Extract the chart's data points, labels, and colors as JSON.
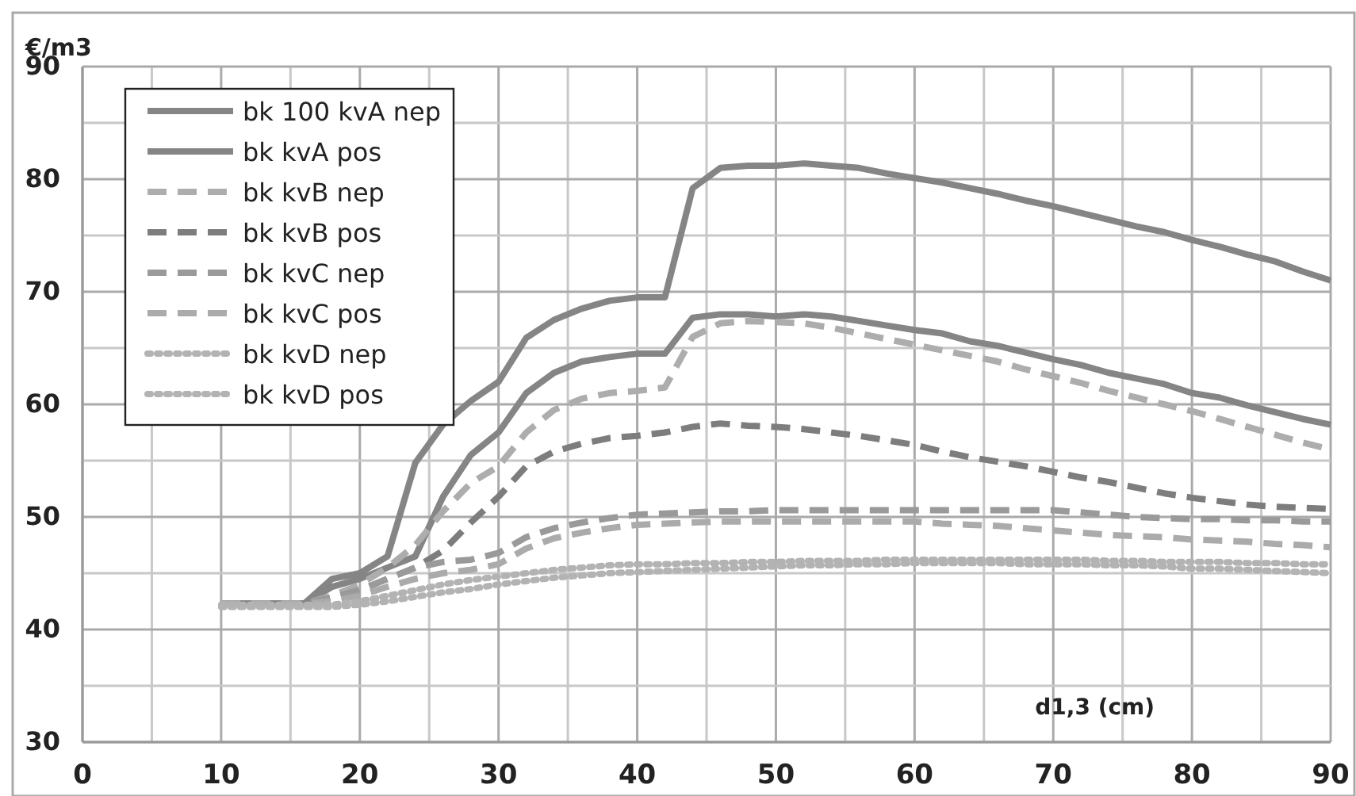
{
  "chart_data": {
    "type": "line",
    "ylabel": "€/m3",
    "xlabel": "d1,3 (cm)",
    "x": [
      10,
      12,
      14,
      16,
      18,
      20,
      22,
      24,
      26,
      28,
      30,
      32,
      34,
      36,
      38,
      40,
      42,
      44,
      46,
      48,
      50,
      52,
      54,
      56,
      58,
      60,
      62,
      64,
      66,
      68,
      70,
      72,
      74,
      76,
      78,
      80,
      82,
      84,
      86,
      88,
      90
    ],
    "series": [
      {
        "name": "bk 100 kvA nep",
        "color": "#858585",
        "line_style": "solid",
        "values": [
          42.3,
          42.3,
          42.3,
          42.3,
          44.5,
          45,
          46.5,
          54.8,
          58.2,
          60.3,
          62,
          65.9,
          67.5,
          68.5,
          69.2,
          69.5,
          69.5,
          79.2,
          81,
          81.2,
          81.2,
          81.4,
          81.2,
          81,
          80.5,
          80.1,
          79.7,
          79.2,
          78.7,
          78.1,
          77.6,
          77,
          76.4,
          75.8,
          75.3,
          74.6,
          74,
          73.3,
          72.7,
          71.8,
          71
        ]
      },
      {
        "name": "bk kvA pos",
        "color": "#858585",
        "line_style": "solid",
        "values": [
          42.3,
          42.3,
          42.3,
          42.3,
          43.8,
          44.5,
          45.5,
          46.5,
          51.8,
          55.5,
          57.5,
          61,
          62.8,
          63.8,
          64.2,
          64.5,
          64.5,
          67.7,
          68,
          68,
          67.8,
          68,
          67.8,
          67.4,
          67,
          66.6,
          66.3,
          65.6,
          65.2,
          64.6,
          64,
          63.5,
          62.8,
          62.3,
          61.8,
          61,
          60.6,
          59.9,
          59.3,
          58.7,
          58.2
        ]
      },
      {
        "name": "bk kvB nep",
        "color": "#adadad",
        "line_style": "dashed",
        "values": [
          42.3,
          42.3,
          42.3,
          42.3,
          43,
          44,
          45.5,
          47.5,
          50.5,
          53,
          54.5,
          57.5,
          59.5,
          60.5,
          61,
          61.2,
          61.5,
          66,
          67.2,
          67.4,
          67.3,
          67.2,
          66.8,
          66.3,
          65.8,
          65.3,
          64.8,
          64.3,
          63.8,
          63.1,
          62.5,
          61.9,
          61.2,
          60.6,
          60,
          59.4,
          58.7,
          58,
          57.3,
          56.6,
          56
        ]
      },
      {
        "name": "bk kvB pos",
        "color": "#7d7d7d",
        "line_style": "dashed",
        "values": [
          42.3,
          42.3,
          42.3,
          42.3,
          42.8,
          43.5,
          44.5,
          45.5,
          47,
          49.5,
          51.8,
          54.5,
          55.8,
          56.5,
          57,
          57.2,
          57.5,
          58,
          58.3,
          58.1,
          58,
          57.8,
          57.5,
          57.2,
          56.8,
          56.4,
          55.8,
          55.3,
          54.9,
          54.5,
          54,
          53.5,
          53.1,
          52.6,
          52.1,
          51.7,
          51.4,
          51.1,
          50.9,
          50.8,
          50.7
        ]
      },
      {
        "name": "bk kvC nep",
        "color": "#9a9a9a",
        "line_style": "dashed",
        "values": [
          42.3,
          42.3,
          42.3,
          42.3,
          42.8,
          43.5,
          44.5,
          45.5,
          46,
          46.2,
          46.8,
          48.2,
          49,
          49.5,
          49.9,
          50.2,
          50.3,
          50.4,
          50.5,
          50.5,
          50.6,
          50.6,
          50.6,
          50.6,
          50.6,
          50.6,
          50.6,
          50.6,
          50.6,
          50.6,
          50.6,
          50.4,
          50.2,
          50,
          49.9,
          49.8,
          49.8,
          49.7,
          49.7,
          49.6,
          49.6
        ]
      },
      {
        "name": "bk kvC pos",
        "color": "#ababab",
        "line_style": "dashed",
        "values": [
          42.3,
          42.3,
          42.3,
          42.3,
          42.5,
          43,
          43.8,
          44.5,
          45,
          45.3,
          45.8,
          47.2,
          48.1,
          48.6,
          49,
          49.3,
          49.4,
          49.5,
          49.6,
          49.6,
          49.6,
          49.6,
          49.6,
          49.6,
          49.6,
          49.6,
          49.4,
          49.3,
          49.2,
          49,
          48.8,
          48.6,
          48.4,
          48.3,
          48.2,
          48,
          47.9,
          47.8,
          47.6,
          47.5,
          47.3
        ]
      },
      {
        "name": "bk kvD nep",
        "color": "#b3b3b3",
        "line_style": "dotted",
        "values": [
          42.2,
          42.2,
          42.2,
          42.2,
          42.2,
          42.5,
          43,
          43.5,
          44,
          44.4,
          44.7,
          45,
          45.3,
          45.5,
          45.7,
          45.8,
          45.8,
          45.9,
          45.9,
          46,
          46,
          46.1,
          46.1,
          46.1,
          46.2,
          46.2,
          46.2,
          46.2,
          46.2,
          46.2,
          46.2,
          46.2,
          46.1,
          46.1,
          46,
          46,
          46,
          45.9,
          45.9,
          45.8,
          45.8
        ]
      },
      {
        "name": "bk kvD pos",
        "color": "#b3b3b3",
        "line_style": "dotted",
        "values": [
          42,
          42,
          42,
          42,
          42,
          42.2,
          42.5,
          42.9,
          43.3,
          43.6,
          44,
          44.3,
          44.6,
          44.8,
          45,
          45.1,
          45.2,
          45.3,
          45.4,
          45.5,
          45.6,
          45.7,
          45.7,
          45.8,
          45.8,
          45.9,
          45.9,
          45.9,
          45.9,
          45.8,
          45.8,
          45.8,
          45.7,
          45.7,
          45.6,
          45.4,
          45.4,
          45.3,
          45.2,
          45.1,
          45
        ]
      }
    ],
    "xlim": [
      0,
      90
    ],
    "ylim": [
      30,
      90
    ],
    "xticks": [
      0,
      {
        "value": 5,
        "label": null
      },
      10,
      {
        "value": 15,
        "label": null
      },
      20,
      {
        "value": 25,
        "label": null
      },
      30,
      {
        "value": 35,
        "label": null
      },
      40,
      {
        "value": 45,
        "label": null
      },
      50,
      {
        "value": 55,
        "label": null
      },
      60,
      {
        "value": 65,
        "label": null
      },
      70,
      {
        "value": 75,
        "label": null
      },
      80,
      {
        "value": 85,
        "label": null
      },
      90
    ],
    "yticks": [
      30,
      {
        "value": 35,
        "label": null
      },
      40,
      {
        "value": 45,
        "label": null
      },
      50,
      {
        "value": 55,
        "label": null
      },
      60,
      {
        "value": 65,
        "label": null
      },
      70,
      {
        "value": 75,
        "label": null
      },
      80,
      {
        "value": 85,
        "label": null
      },
      90
    ],
    "grid": true,
    "legend": "top left",
    "marker": "none"
  }
}
